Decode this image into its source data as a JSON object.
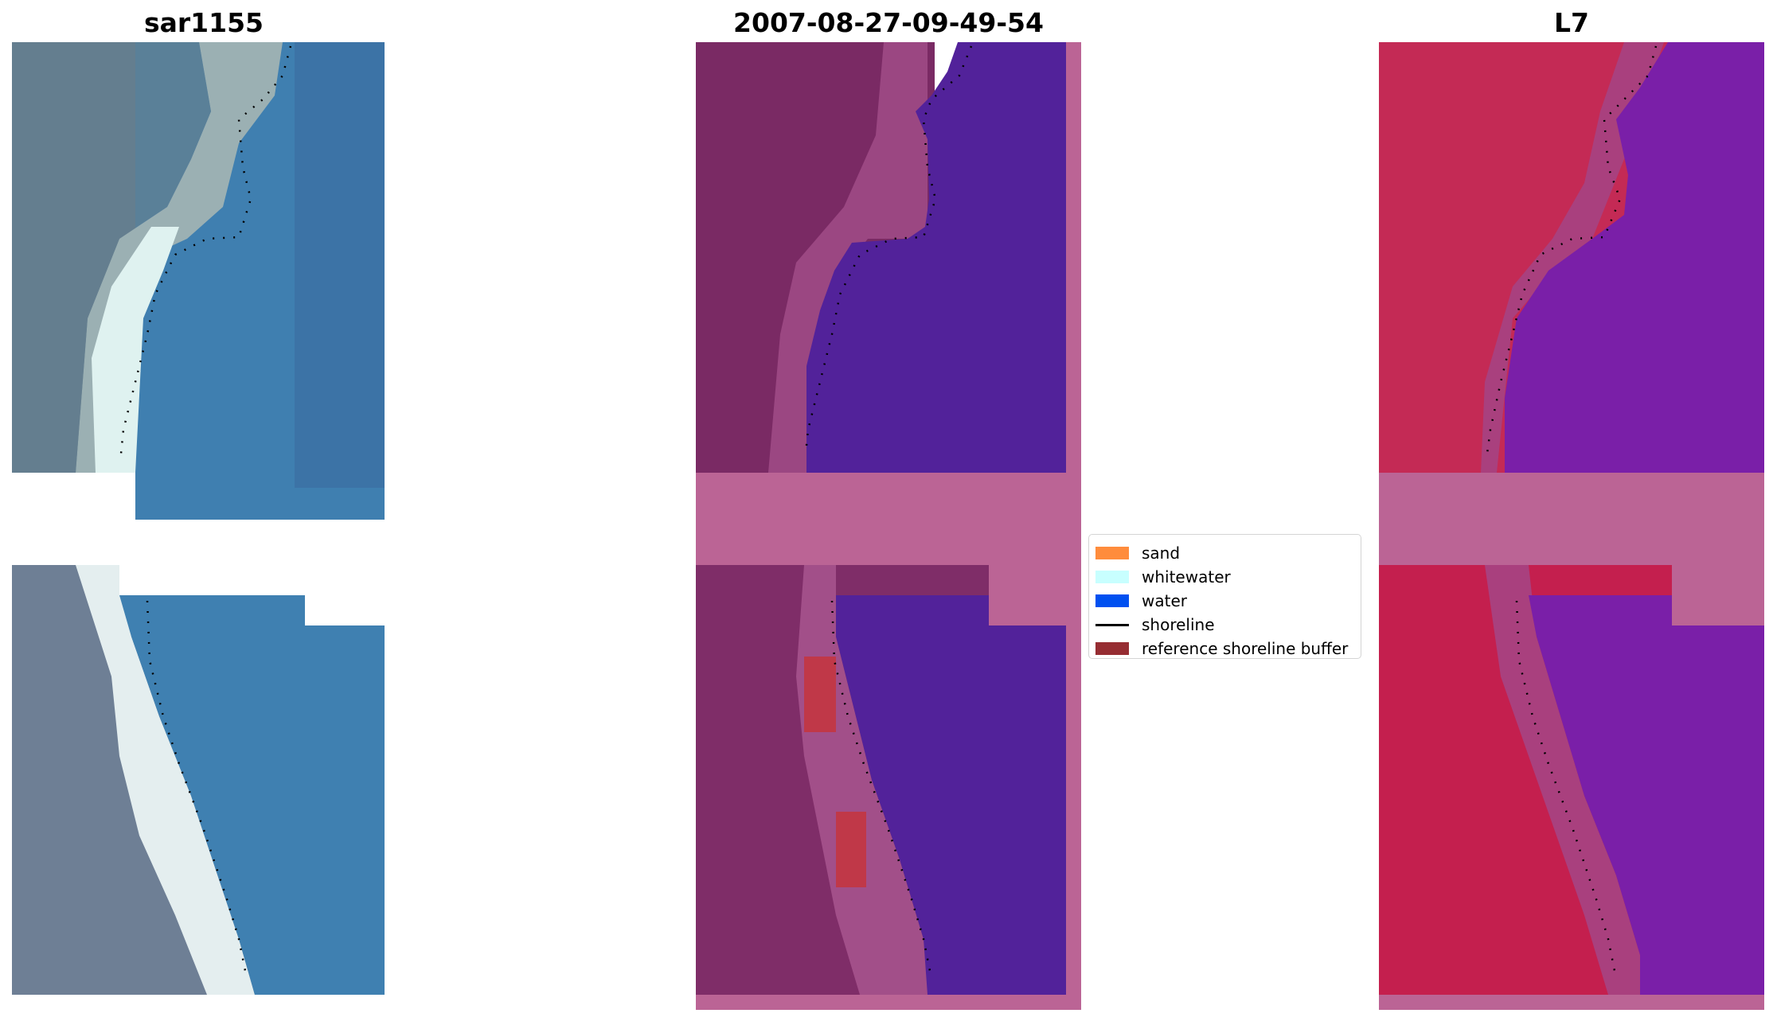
{
  "panels": [
    {
      "title": "sar1155"
    },
    {
      "title": "2007-08-27-09-49-54"
    },
    {
      "title": "L7"
    }
  ],
  "legend": {
    "items": [
      {
        "label": "sand",
        "color": "#ff8c3c"
      },
      {
        "label": "whitewater",
        "color": "#c8ffff"
      },
      {
        "label": "water",
        "color": "#0050f0"
      },
      {
        "label": "shoreline",
        "color": "#000000"
      },
      {
        "label": "reference shoreline buffer",
        "color": "#962d32"
      }
    ]
  },
  "colors": {
    "rgb_land": "#5f7a90",
    "rgb_sea": "#3f7fb0",
    "rgb_surf": "#dff2f0",
    "class_land": "#7a2a64",
    "class_water": "#52229a",
    "class_nodata": "#bb6495",
    "class_buffer": "#c03848",
    "swir_land": "#c42a55",
    "swir_water": "#7a1fa8",
    "nodata": "#bb6495"
  }
}
